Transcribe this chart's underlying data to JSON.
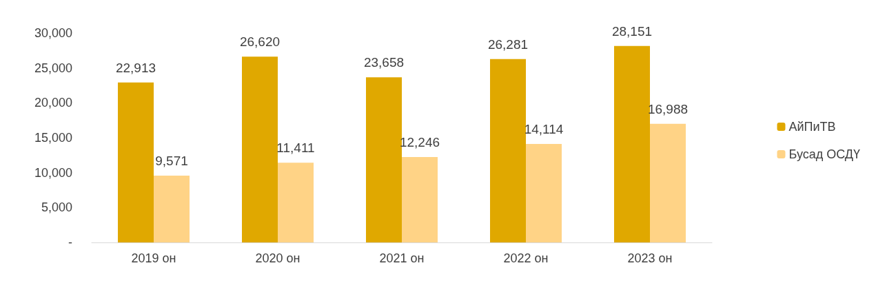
{
  "chart_data": {
    "type": "bar",
    "categories": [
      "2019 он",
      "2020 он",
      "2021 он",
      "2022 он",
      "2023 он"
    ],
    "series": [
      {
        "name": "АйПиТВ",
        "color": "#e0a800",
        "values": [
          22913,
          26620,
          23658,
          26281,
          28151
        ],
        "value_labels": [
          "22,913",
          "26,620",
          "23,658",
          "26,281",
          "28,151"
        ]
      },
      {
        "name": "Бусад ОСДҮ",
        "color": "#ffd386",
        "values": [
          9571,
          11411,
          12246,
          14114,
          16988
        ],
        "value_labels": [
          "9,571",
          "11,411",
          "12,246",
          "14,114",
          "16,988"
        ]
      }
    ],
    "ylim": [
      0,
      30000
    ],
    "yticks": [
      {
        "value": 0,
        "label": "-"
      },
      {
        "value": 5000,
        "label": "5,000"
      },
      {
        "value": 10000,
        "label": "10,000"
      },
      {
        "value": 15000,
        "label": "15,000"
      },
      {
        "value": 20000,
        "label": "20,000"
      },
      {
        "value": 25000,
        "label": "25,000"
      },
      {
        "value": 30000,
        "label": "30,000"
      }
    ],
    "grid": false,
    "legend": "right"
  }
}
